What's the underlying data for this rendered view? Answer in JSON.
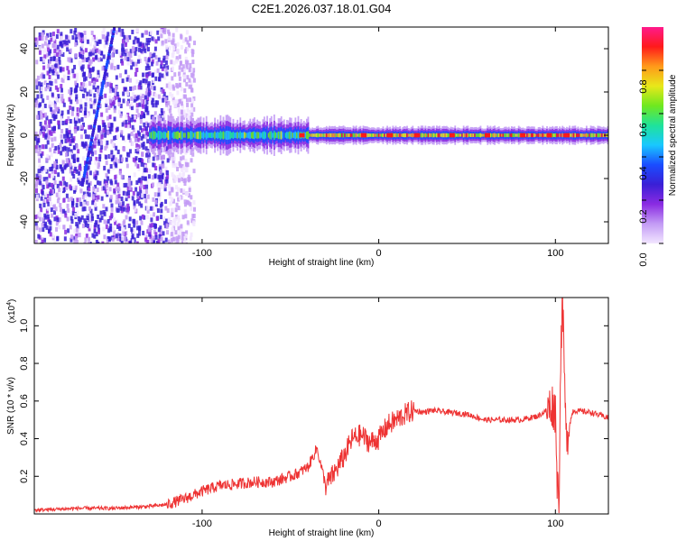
{
  "chart_data": [
    {
      "type": "heatmap",
      "title": "C2E1.2026.037.18.01.G04",
      "xlabel": "Height of straight line (km)",
      "ylabel": "Frequency (Hz)",
      "xlim": [
        -195,
        130
      ],
      "ylim": [
        -50,
        50
      ],
      "x_ticks": [
        -100,
        0,
        100
      ],
      "x_tick_labels": [
        "-100",
        "0",
        "100"
      ],
      "y_ticks": [
        -40,
        -20,
        0,
        20,
        40
      ],
      "y_tick_labels": [
        "-40",
        "-20",
        "0",
        "20",
        "40"
      ],
      "colorbar": {
        "label": "Normalized spectral amplitude",
        "range": [
          0,
          1
        ],
        "ticks": [
          0.0,
          0.2,
          0.4,
          0.6,
          0.8
        ],
        "tick_labels": [
          "0.0",
          "0.2",
          "0.4",
          "0.6",
          "0.8"
        ],
        "colors": [
          "#f2e6ff",
          "#c39bf5",
          "#8a2be2",
          "#3a1fd6",
          "#1a4dff",
          "#19c8ff",
          "#1fe39a",
          "#6fe81f",
          "#e8e81a",
          "#ff9a1a",
          "#ff1a1a",
          "#ff1a8c"
        ]
      },
      "features": {
        "noise_region_x": [
          -195,
          -120
        ],
        "streak_line": {
          "x": [
            -168,
            -150
          ],
          "y": [
            -22,
            50
          ]
        },
        "central_band_center_hz": 0,
        "band_half_width_near_minus100_hz": 8,
        "band_half_width_far_hz": 3
      }
    },
    {
      "type": "line",
      "xlabel": "Height of straight line (km)",
      "ylabel": "SNR (10 * v/v)",
      "y_scale_note": "(x10",
      "y_scale_exp": "4",
      "xlim": [
        -195,
        130
      ],
      "ylim": [
        0,
        1.15
      ],
      "x_ticks": [
        -100,
        0,
        100
      ],
      "x_tick_labels": [
        "-100",
        "0",
        "100"
      ],
      "y_ticks": [
        0.2,
        0.4,
        0.6,
        0.8,
        1.0
      ],
      "y_tick_labels": [
        "0.2",
        "0.4",
        "0.6",
        "0.8",
        "1.0"
      ],
      "line_color": "#ee3333",
      "series": [
        {
          "name": "SNR",
          "x": [
            -195,
            -170,
            -150,
            -130,
            -120,
            -110,
            -100,
            -90,
            -80,
            -70,
            -60,
            -50,
            -45,
            -40,
            -35,
            -30,
            -25,
            -20,
            -15,
            -10,
            -5,
            0,
            5,
            10,
            15,
            20,
            25,
            30,
            40,
            50,
            60,
            70,
            80,
            90,
            95,
            98,
            100,
            101,
            102,
            103,
            104,
            106,
            110,
            120,
            130
          ],
          "y": [
            0.02,
            0.03,
            0.03,
            0.04,
            0.05,
            0.08,
            0.12,
            0.15,
            0.16,
            0.17,
            0.17,
            0.2,
            0.22,
            0.25,
            0.35,
            0.15,
            0.22,
            0.3,
            0.4,
            0.42,
            0.38,
            0.4,
            0.47,
            0.5,
            0.53,
            0.55,
            0.54,
            0.55,
            0.54,
            0.53,
            0.5,
            0.5,
            0.5,
            0.52,
            0.55,
            0.58,
            0.55,
            0.2,
            0.05,
            0.85,
            1.15,
            0.4,
            0.55,
            0.54,
            0.51
          ]
        }
      ]
    }
  ]
}
